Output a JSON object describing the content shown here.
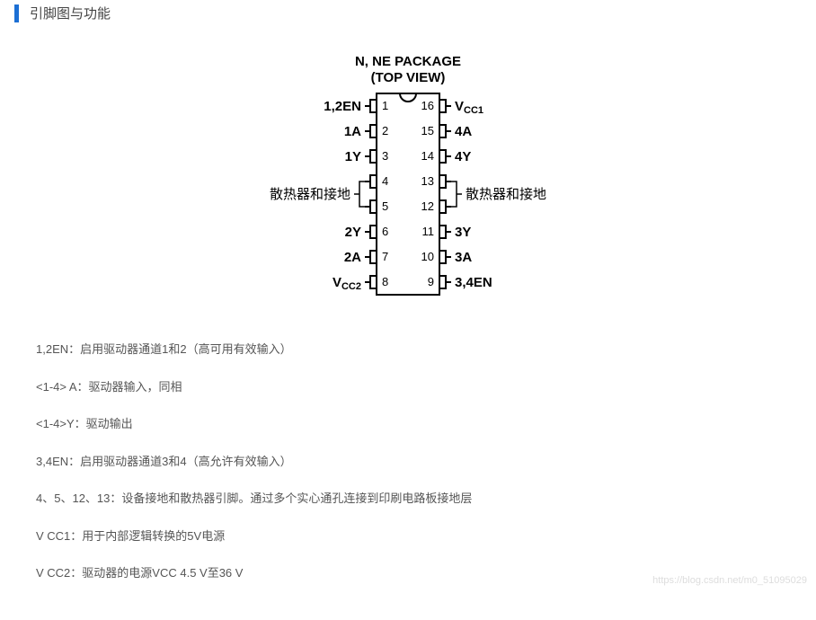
{
  "header": {
    "title": "引脚图与功能",
    "bar_color": "#1c6fd4"
  },
  "chip": {
    "title_line1": "N, NE PACKAGE",
    "title_line2": "(TOP VIEW)",
    "title_fontsize": 15,
    "title_font_weight": "bold",
    "body_stroke": "#000000",
    "body_stroke_width": 2,
    "body_fill": "#ffffff",
    "label_fontsize": 15,
    "num_fontsize": 13,
    "heatsink_label_left": "散热器和接地",
    "heatsink_label_right": "散热器和接地",
    "left_pins": [
      {
        "num": 1,
        "label": "1,2EN"
      },
      {
        "num": 2,
        "label": "1A"
      },
      {
        "num": 3,
        "label": "1Y"
      },
      {
        "num": 4,
        "label": ""
      },
      {
        "num": 5,
        "label": ""
      },
      {
        "num": 6,
        "label": "2Y"
      },
      {
        "num": 7,
        "label": "2A"
      },
      {
        "num": 8,
        "label": "V",
        "sub": "CC2"
      }
    ],
    "right_pins": [
      {
        "num": 16,
        "label": "V",
        "sub": "CC1"
      },
      {
        "num": 15,
        "label": "4A"
      },
      {
        "num": 14,
        "label": "4Y"
      },
      {
        "num": 13,
        "label": ""
      },
      {
        "num": 12,
        "label": ""
      },
      {
        "num": 11,
        "label": "3Y"
      },
      {
        "num": 10,
        "label": "3A"
      },
      {
        "num": 9,
        "label": "3,4EN"
      }
    ]
  },
  "descriptions": [
    "1,2EN：启用驱动器通道1和2（高可用有效输入）",
    "<1-4> A：驱动器输入，同相",
    "<1-4>Y：驱动输出",
    "3,4EN：启用驱动器通道3和4（高允许有效输入）",
    "4、5、12、13：设备接地和散热器引脚。通过多个实心通孔连接到印刷电路板接地层",
    "V CC1：用于内部逻辑转换的5V电源",
    "V CC2：驱动器的电源VCC 4.5 V至36 V"
  ],
  "watermark": "https://blog.csdn.net/m0_51095029"
}
